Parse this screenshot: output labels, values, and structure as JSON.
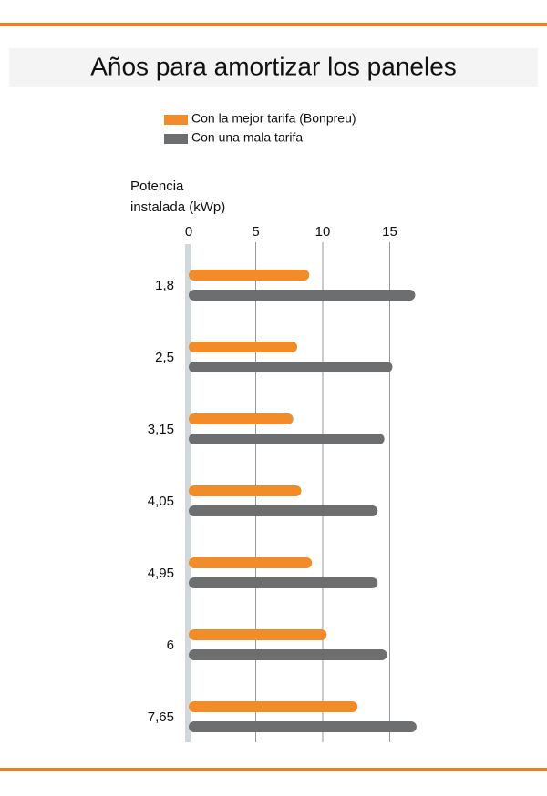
{
  "chart_data": {
    "type": "hbar",
    "title": "Años para amortizar los paneles",
    "ylabel": [
      "Potencia",
      "instalada (kWp)"
    ],
    "categories": [
      "1,8",
      "2,5",
      "3,15",
      "4,05",
      "4,95",
      "6",
      "7,65"
    ],
    "series": [
      {
        "name": "Con la mejor tarifa (Bonpreu)",
        "color": "#f28c28",
        "values": [
          9.0,
          8.1,
          7.8,
          8.4,
          9.2,
          10.3,
          12.6
        ]
      },
      {
        "name": "Con una mala tarifa",
        "color": "#6d6e70",
        "values": [
          16.9,
          15.2,
          14.6,
          14.1,
          14.1,
          14.8,
          17.0
        ]
      }
    ],
    "xlim": [
      0,
      17
    ],
    "xticks": [
      0,
      5,
      10,
      15
    ],
    "grid": true
  }
}
